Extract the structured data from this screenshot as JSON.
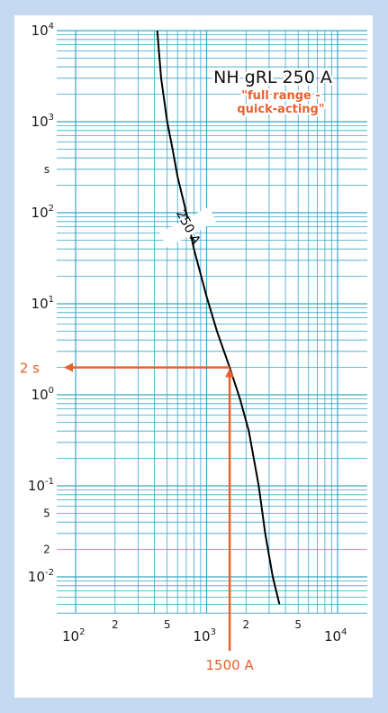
{
  "chart_data": {
    "type": "line",
    "title": "NH gRL 250 A",
    "subtitle": "\"full range -\nquick-acting\"",
    "xscale": "log",
    "yscale": "log",
    "xlim": [
      150,
      25000
    ],
    "ylim": [
      0.004,
      10000
    ],
    "ylabel": "s",
    "grid": true,
    "colors": {
      "grid": "#3aa6c8",
      "curve": "#000000",
      "accent": "#e8602c",
      "axis_text": "#1a1a1a"
    },
    "x_ticks": [
      {
        "value": 100,
        "base": "10",
        "exp": "2"
      },
      {
        "value": 200,
        "label": "2"
      },
      {
        "value": 500,
        "label": "5"
      },
      {
        "value": 1000,
        "base": "10",
        "exp": "3"
      },
      {
        "value": 2000,
        "label": "2"
      },
      {
        "value": 5000,
        "label": "5"
      },
      {
        "value": 10000,
        "base": "10",
        "exp": "4"
      }
    ],
    "y_ticks": [
      {
        "value": 10000,
        "base": "10",
        "exp": "4"
      },
      {
        "value": 1000,
        "base": "10",
        "exp": "3"
      },
      {
        "value": 300,
        "label": "s"
      },
      {
        "value": 100,
        "base": "10",
        "exp": "2"
      },
      {
        "value": 10,
        "base": "10",
        "exp": "1"
      },
      {
        "value": 1,
        "base": "10",
        "exp": "0"
      },
      {
        "value": 0.1,
        "base": "10",
        "exp": "-1"
      },
      {
        "value": 0.05,
        "label": "5"
      },
      {
        "value": 0.02,
        "label": "2"
      },
      {
        "value": 0.01,
        "base": "10",
        "exp": "-2"
      }
    ],
    "series": [
      {
        "name": "250 A",
        "x": [
          420,
          450,
          500,
          550,
          600,
          700,
          800,
          1000,
          1200,
          1500,
          1800,
          2100,
          2500,
          2800,
          3200,
          3600
        ],
        "y": [
          10000,
          3000,
          1000,
          500,
          250,
          100,
          40,
          12,
          5,
          2,
          0.9,
          0.4,
          0.1,
          0.03,
          0.01,
          0.005
        ]
      }
    ],
    "annotations": [
      {
        "label": "2 s",
        "value": 2,
        "kind": "horizontal-arrow"
      },
      {
        "label": "1500 A",
        "value": 1500,
        "kind": "vertical-arrow"
      }
    ]
  }
}
